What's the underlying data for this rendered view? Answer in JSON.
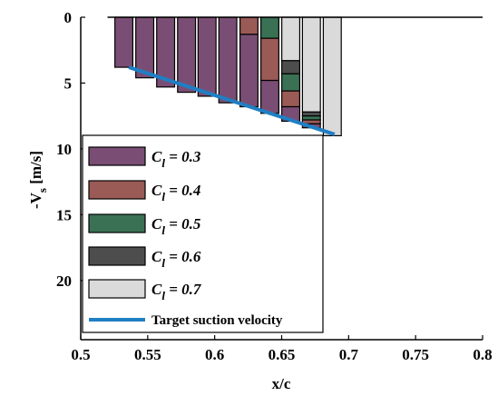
{
  "chart_data": {
    "type": "bar",
    "title": "",
    "xlabel": "x/c",
    "ylabel": "-V",
    "ylabel_subscript": "s",
    "ylabel_unit": "[m/s]",
    "xlim": [
      0.5,
      0.8
    ],
    "ylim": [
      0,
      24.5
    ],
    "y_reversed": true,
    "xticks": [
      0.5,
      0.55,
      0.6,
      0.65,
      0.7,
      0.75,
      0.8
    ],
    "xtick_labels": [
      "0.5",
      "0.55",
      "0.6",
      "0.65",
      "0.7",
      "0.75",
      "0.8"
    ],
    "yticks": [
      0,
      5,
      10,
      15,
      20
    ],
    "ytick_labels": [
      "0",
      "5",
      "10",
      "15",
      "20"
    ],
    "grid": false,
    "legend_position": "lower-left",
    "colors": {
      "cl_0_3": "#7a4e74",
      "cl_0_4": "#9a5a56",
      "cl_0_5": "#3a7154",
      "cl_0_6": "#4d4d4d",
      "cl_0_7": "#dadada",
      "target": "#1f7fc4"
    },
    "legend": [
      {
        "key": "cl_0_3",
        "symbol": "C",
        "sub": "l",
        "text": " = 0.3"
      },
      {
        "key": "cl_0_4",
        "symbol": "C",
        "sub": "l",
        "text": " = 0.4"
      },
      {
        "key": "cl_0_5",
        "symbol": "C",
        "sub": "l",
        "text": " = 0.5"
      },
      {
        "key": "cl_0_6",
        "symbol": "C",
        "sub": "l",
        "text": " = 0.6"
      },
      {
        "key": "cl_0_7",
        "symbol": "C",
        "sub": "l",
        "text": " = 0.7"
      },
      {
        "key": "target",
        "line": true,
        "text": "Target suction velocity"
      }
    ],
    "bars": [
      {
        "x0": 0.5255,
        "x1": 0.5389,
        "segments": [
          {
            "key": "cl_0_3",
            "from": 0.0,
            "to": 3.8
          }
        ]
      },
      {
        "x0": 0.5411,
        "x1": 0.5545,
        "segments": [
          {
            "key": "cl_0_3",
            "from": 0.0,
            "to": 4.6
          }
        ]
      },
      {
        "x0": 0.5567,
        "x1": 0.5701,
        "segments": [
          {
            "key": "cl_0_3",
            "from": 0.0,
            "to": 5.3
          }
        ]
      },
      {
        "x0": 0.5723,
        "x1": 0.5857,
        "segments": [
          {
            "key": "cl_0_3",
            "from": 0.0,
            "to": 5.7
          }
        ]
      },
      {
        "x0": 0.5876,
        "x1": 0.601,
        "segments": [
          {
            "key": "cl_0_3",
            "from": 0.0,
            "to": 6.0
          }
        ]
      },
      {
        "x0": 0.6031,
        "x1": 0.6165,
        "segments": [
          {
            "key": "cl_0_3",
            "from": 0.0,
            "to": 6.5
          }
        ]
      },
      {
        "x0": 0.6189,
        "x1": 0.6323,
        "segments": [
          {
            "key": "cl_0_4",
            "from": 0.0,
            "to": 1.3
          },
          {
            "key": "cl_0_3",
            "from": 1.3,
            "to": 6.8
          }
        ]
      },
      {
        "x0": 0.6345,
        "x1": 0.6479,
        "segments": [
          {
            "key": "cl_0_5",
            "from": 0.0,
            "to": 1.6
          },
          {
            "key": "cl_0_4",
            "from": 1.6,
            "to": 4.8
          },
          {
            "key": "cl_0_3",
            "from": 4.8,
            "to": 7.3
          }
        ]
      },
      {
        "x0": 0.6501,
        "x1": 0.6635,
        "segments": [
          {
            "key": "cl_0_7",
            "from": 0.0,
            "to": 3.3
          },
          {
            "key": "cl_0_6",
            "from": 3.3,
            "to": 4.3
          },
          {
            "key": "cl_0_5",
            "from": 4.3,
            "to": 5.6
          },
          {
            "key": "cl_0_4",
            "from": 5.6,
            "to": 6.8
          },
          {
            "key": "cl_0_3",
            "from": 6.8,
            "to": 7.9
          }
        ]
      },
      {
        "x0": 0.6655,
        "x1": 0.6789,
        "segments": [
          {
            "key": "cl_0_7",
            "from": 0.0,
            "to": 7.2
          },
          {
            "key": "cl_0_6",
            "from": 7.2,
            "to": 7.5
          },
          {
            "key": "cl_0_5",
            "from": 7.5,
            "to": 7.8
          },
          {
            "key": "cl_0_4",
            "from": 7.8,
            "to": 8.1
          },
          {
            "key": "cl_0_3",
            "from": 8.1,
            "to": 8.4
          }
        ]
      },
      {
        "x0": 0.6811,
        "x1": 0.6945,
        "segments": [
          {
            "key": "cl_0_7",
            "from": 0.0,
            "to": 9.0
          }
        ]
      }
    ],
    "target_line": {
      "x": [
        0.536,
        0.6895
      ],
      "y": [
        3.8,
        8.9
      ]
    }
  }
}
